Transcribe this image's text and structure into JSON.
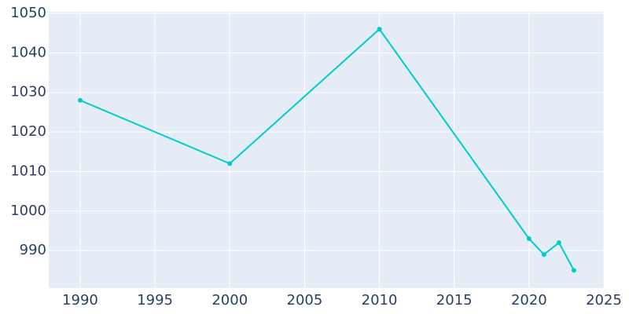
{
  "chart_data": {
    "type": "line",
    "x": [
      1990,
      2000,
      2010,
      2020,
      2021,
      2022,
      2023
    ],
    "series": [
      {
        "color": "#00cccc",
        "values": [
          1028,
          1012,
          1046,
          993,
          989,
          992,
          985
        ]
      }
    ],
    "xlim": [
      1987.9,
      2025
    ],
    "xticks": [
      1990,
      1995,
      2000,
      2005,
      2010,
      2015,
      2020,
      2025
    ],
    "ylim": [
      980.5,
      1050.4
    ],
    "yticks": [
      990,
      1000,
      1010,
      1020,
      1030,
      1040,
      1050
    ],
    "grid": true,
    "background": "#e5ecf6"
  }
}
